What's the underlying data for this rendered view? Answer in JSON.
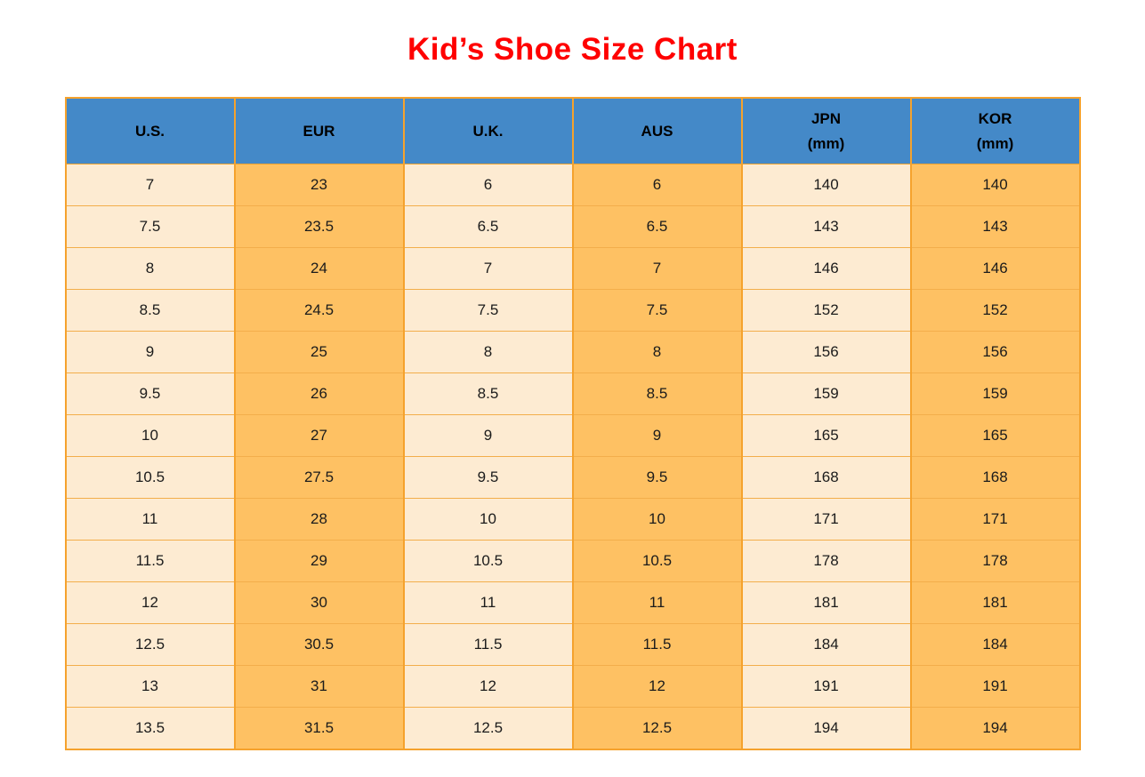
{
  "title": "Kid’s Shoe Size Chart",
  "colors": {
    "title_red": "#FF0000",
    "header_blue": "#4489C8",
    "cell_cream": "#FDEBD2",
    "cell_orange": "#FEC163",
    "grid_orange_vertical": "#F5A22D",
    "grid_orange_horizontal": "#F3AE4B",
    "text_dark": "#1b1b1b"
  },
  "table": {
    "columns": [
      {
        "id": "us",
        "label": "U.S."
      },
      {
        "id": "eur",
        "label": "EUR"
      },
      {
        "id": "uk",
        "label": "U.K."
      },
      {
        "id": "aus",
        "label": "AUS"
      },
      {
        "id": "jpn-mm",
        "label": "JPN\n(mm)"
      },
      {
        "id": "kor-mm",
        "label": "KOR\n(mm)"
      }
    ],
    "rows": [
      [
        "7",
        "23",
        "6",
        "6",
        "140",
        "140"
      ],
      [
        "7.5",
        "23.5",
        "6.5",
        "6.5",
        "143",
        "143"
      ],
      [
        "8",
        "24",
        "7",
        "7",
        "146",
        "146"
      ],
      [
        "8.5",
        "24.5",
        "7.5",
        "7.5",
        "152",
        "152"
      ],
      [
        "9",
        "25",
        "8",
        "8",
        "156",
        "156"
      ],
      [
        "9.5",
        "26",
        "8.5",
        "8.5",
        "159",
        "159"
      ],
      [
        "10",
        "27",
        "9",
        "9",
        "165",
        "165"
      ],
      [
        "10.5",
        "27.5",
        "9.5",
        "9.5",
        "168",
        "168"
      ],
      [
        "11",
        "28",
        "10",
        "10",
        "171",
        "171"
      ],
      [
        "11.5",
        "29",
        "10.5",
        "10.5",
        "178",
        "178"
      ],
      [
        "12",
        "30",
        "11",
        "11",
        "181",
        "181"
      ],
      [
        "12.5",
        "30.5",
        "11.5",
        "11.5",
        "184",
        "184"
      ],
      [
        "13",
        "31",
        "12",
        "12",
        "191",
        "191"
      ],
      [
        "13.5",
        "31.5",
        "12.5",
        "12.5",
        "194",
        "194"
      ]
    ]
  },
  "chart_data": {
    "type": "table",
    "title": "Kid’s Shoe Size Chart",
    "columns": [
      "U.S.",
      "EUR",
      "U.K.",
      "AUS",
      "JPN (mm)",
      "KOR (mm)"
    ],
    "rows": [
      [
        7,
        23,
        6,
        6,
        140,
        140
      ],
      [
        7.5,
        23.5,
        6.5,
        6.5,
        143,
        143
      ],
      [
        8,
        24,
        7,
        7,
        146,
        146
      ],
      [
        8.5,
        24.5,
        7.5,
        7.5,
        152,
        152
      ],
      [
        9,
        25,
        8,
        8,
        156,
        156
      ],
      [
        9.5,
        26,
        8.5,
        8.5,
        159,
        159
      ],
      [
        10,
        27,
        9,
        9,
        165,
        165
      ],
      [
        10.5,
        27.5,
        9.5,
        9.5,
        168,
        168
      ],
      [
        11,
        28,
        10,
        10,
        171,
        171
      ],
      [
        11.5,
        29,
        10.5,
        10.5,
        178,
        178
      ],
      [
        12,
        30,
        11,
        11,
        181,
        181
      ],
      [
        12.5,
        30.5,
        11.5,
        11.5,
        184,
        184
      ],
      [
        13,
        31,
        12,
        12,
        191,
        191
      ],
      [
        13.5,
        31.5,
        12.5,
        12.5,
        194,
        194
      ]
    ],
    "layout": {
      "column_fill_pattern": [
        "cream",
        "orange",
        "cream",
        "orange",
        "cream",
        "orange"
      ],
      "header_fill": "blue",
      "grid": "orange lines"
    }
  }
}
